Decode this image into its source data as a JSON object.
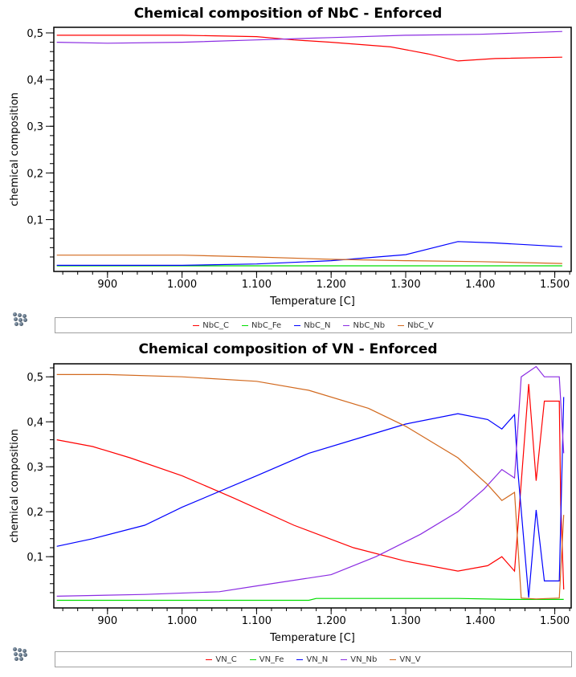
{
  "chart_data": [
    {
      "type": "line",
      "title": "Chemical composition of NbC - Enforced",
      "xlabel": "Temperature [C]",
      "ylabel": "chemical composition",
      "xlim": [
        828,
        1522
      ],
      "ylim": [
        -0.011,
        0.512
      ],
      "xticks": [
        900,
        1000,
        1100,
        1200,
        1300,
        1400,
        1500
      ],
      "xtick_labels": [
        "900",
        "1.000",
        "1.100",
        "1.200",
        "1.300",
        "1.400",
        "1.500"
      ],
      "yticks": [
        0.1,
        0.2,
        0.3,
        0.4,
        0.5
      ],
      "ytick_labels": [
        "0,1",
        "0,2",
        "0,3",
        "0,4",
        "0,5"
      ],
      "legend_position": "bottom",
      "series": [
        {
          "name": "NbC_C",
          "color": "#ff0000",
          "x": [
            832,
            1000,
            1100,
            1150,
            1200,
            1280,
            1330,
            1370,
            1420,
            1510
          ],
          "y": [
            0.495,
            0.495,
            0.492,
            0.485,
            0.48,
            0.47,
            0.455,
            0.44,
            0.445,
            0.448
          ]
        },
        {
          "name": "NbC_Fe",
          "color": "#00dd00",
          "x": [
            832,
            1000,
            1200,
            1350,
            1510
          ],
          "y": [
            0.001,
            0.001,
            0.001,
            0.001,
            0.001
          ]
        },
        {
          "name": "NbC_N",
          "color": "#0000ff",
          "x": [
            832,
            1000,
            1100,
            1200,
            1300,
            1370,
            1420,
            1510
          ],
          "y": [
            0.002,
            0.002,
            0.005,
            0.012,
            0.025,
            0.053,
            0.05,
            0.042
          ]
        },
        {
          "name": "NbC_Nb",
          "color": "#8a2be2",
          "x": [
            832,
            900,
            1000,
            1100,
            1200,
            1300,
            1400,
            1510
          ],
          "y": [
            0.48,
            0.478,
            0.48,
            0.485,
            0.49,
            0.495,
            0.497,
            0.503
          ]
        },
        {
          "name": "NbC_V",
          "color": "#d2691e",
          "x": [
            832,
            1000,
            1100,
            1200,
            1300,
            1400,
            1510
          ],
          "y": [
            0.024,
            0.024,
            0.02,
            0.015,
            0.012,
            0.01,
            0.006
          ]
        }
      ]
    },
    {
      "type": "line",
      "title": "Chemical composition of VN - Enforced",
      "xlabel": "Temperature [C]",
      "ylabel": "chemical composition",
      "xlim": [
        828,
        1522
      ],
      "ylim": [
        -0.014,
        0.529
      ],
      "xticks": [
        900,
        1000,
        1100,
        1200,
        1300,
        1400,
        1500
      ],
      "xtick_labels": [
        "900",
        "1.000",
        "1.100",
        "1.200",
        "1.300",
        "1.400",
        "1.500"
      ],
      "yticks": [
        0.1,
        0.2,
        0.3,
        0.4,
        0.5
      ],
      "ytick_labels": [
        "0,1",
        "0,2",
        "0,3",
        "0,4",
        "0,5"
      ],
      "legend_position": "bottom",
      "series": [
        {
          "name": "VN_C",
          "color": "#ff0000",
          "x": [
            832,
            880,
            930,
            1000,
            1070,
            1150,
            1230,
            1300,
            1370,
            1410,
            1429,
            1446,
            1465,
            1475,
            1486,
            1506,
            1508,
            1512
          ],
          "y": [
            0.36,
            0.345,
            0.32,
            0.28,
            0.23,
            0.17,
            0.12,
            0.09,
            0.068,
            0.08,
            0.1,
            0.068,
            0.484,
            0.269,
            0.446,
            0.446,
            0.216,
            0.027
          ]
        },
        {
          "name": "VN_Fe",
          "color": "#00dd00",
          "x": [
            832,
            1170,
            1180,
            1370,
            1440,
            1512
          ],
          "y": [
            0.003,
            0.003,
            0.007,
            0.007,
            0.005,
            0.005
          ]
        },
        {
          "name": "VN_N",
          "color": "#0000ff",
          "x": [
            832,
            880,
            950,
            1000,
            1100,
            1170,
            1250,
            1300,
            1370,
            1410,
            1429,
            1446,
            1450,
            1465,
            1475,
            1486,
            1506,
            1512
          ],
          "y": [
            0.123,
            0.14,
            0.17,
            0.21,
            0.28,
            0.33,
            0.37,
            0.395,
            0.418,
            0.405,
            0.384,
            0.416,
            0.3,
            0.009,
            0.204,
            0.046,
            0.046,
            0.455
          ]
        },
        {
          "name": "VN_Nb",
          "color": "#8a2be2",
          "x": [
            832,
            950,
            1050,
            1100,
            1200,
            1260,
            1320,
            1370,
            1405,
            1429,
            1446,
            1455,
            1475,
            1486,
            1506,
            1512
          ],
          "y": [
            0.012,
            0.016,
            0.022,
            0.035,
            0.06,
            0.1,
            0.15,
            0.2,
            0.25,
            0.294,
            0.275,
            0.5,
            0.523,
            0.5,
            0.5,
            0.33
          ]
        },
        {
          "name": "VN_V",
          "color": "#d2691e",
          "x": [
            832,
            900,
            1000,
            1100,
            1170,
            1250,
            1300,
            1370,
            1410,
            1429,
            1446,
            1455,
            1475,
            1506,
            1512
          ],
          "y": [
            0.505,
            0.505,
            0.5,
            0.49,
            0.47,
            0.43,
            0.39,
            0.32,
            0.26,
            0.225,
            0.243,
            0.008,
            0.006,
            0.008,
            0.193
          ]
        }
      ]
    }
  ]
}
